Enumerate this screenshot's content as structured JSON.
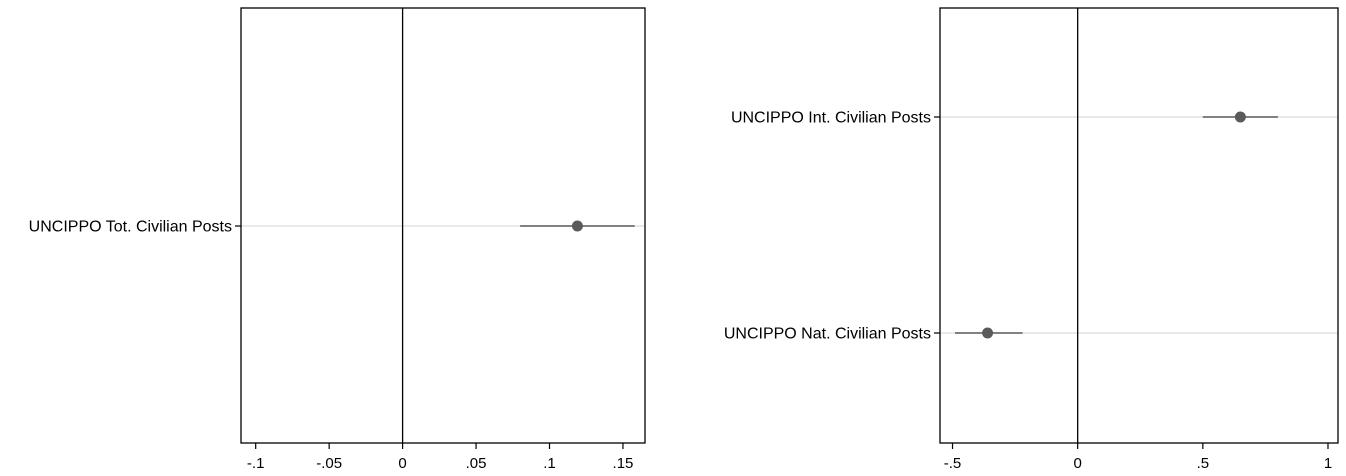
{
  "chart_data": [
    {
      "type": "scatter",
      "subtype": "coefficient plot (point estimate with confidence interval)",
      "title": "",
      "xlabel": "",
      "ylabel": "",
      "xlim": [
        -0.11,
        0.165
      ],
      "x_ticks": [
        -0.1,
        -0.05,
        0,
        0.05,
        0.1,
        0.15
      ],
      "x_tick_labels": [
        "-.1",
        "-.05",
        "0",
        ".05",
        ".1",
        ".15"
      ],
      "reference_line_x": 0,
      "grid": false,
      "categories": [
        "UNCIPPO Tot. Civilian Posts"
      ],
      "estimates": [
        0.119
      ],
      "ci_low": [
        0.08
      ],
      "ci_high": [
        0.158
      ],
      "color": "#5a5a5a"
    },
    {
      "type": "scatter",
      "subtype": "coefficient plot (point estimate with confidence interval)",
      "title": "",
      "xlabel": "",
      "ylabel": "",
      "xlim": [
        -0.55,
        1.04
      ],
      "x_ticks": [
        -0.5,
        0,
        0.5,
        1
      ],
      "x_tick_labels": [
        "-.5",
        "0",
        ".5",
        "1"
      ],
      "reference_line_x": 0,
      "grid": false,
      "categories": [
        "UNCIPPO Int. Civilian Posts",
        "UNCIPPO Nat. Civilian Posts"
      ],
      "estimates": [
        0.65,
        -0.36
      ],
      "ci_low": [
        0.5,
        -0.49
      ],
      "ci_high": [
        0.8,
        -0.22
      ],
      "color": "#5a5a5a"
    }
  ]
}
